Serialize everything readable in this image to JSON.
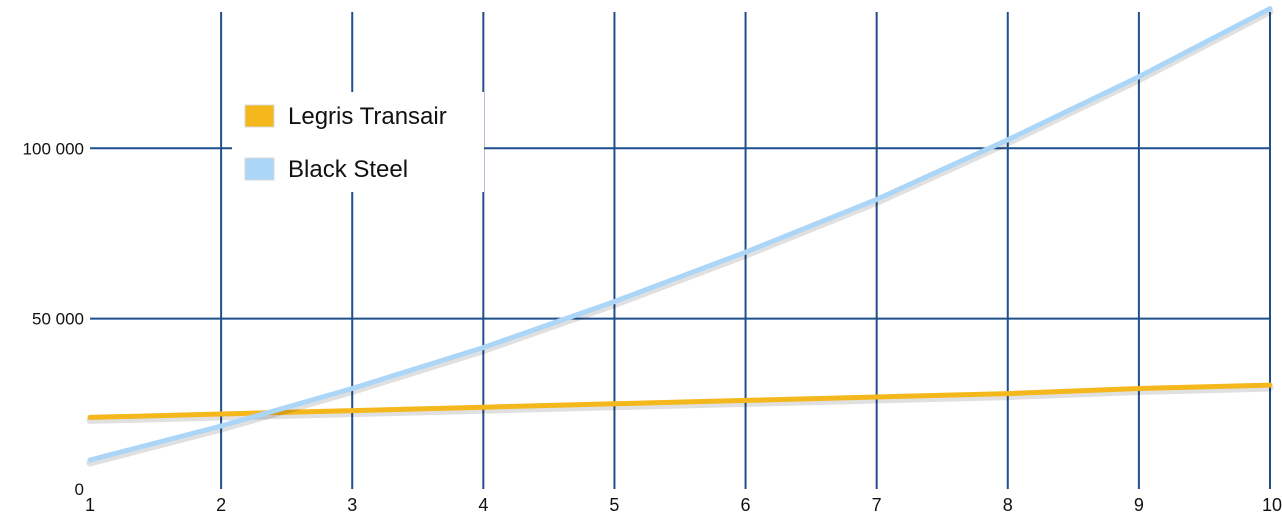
{
  "chart_data": {
    "type": "line",
    "title": "",
    "xlabel": "",
    "ylabel": "",
    "x": [
      1,
      2,
      3,
      4,
      5,
      6,
      7,
      8,
      9,
      10
    ],
    "xlim": [
      1,
      10
    ],
    "ylim": [
      0,
      140000
    ],
    "xticks": [
      "1",
      "2",
      "3",
      "4",
      "5",
      "6",
      "7",
      "8",
      "9",
      "10"
    ],
    "yticks": [
      {
        "value": 0,
        "label": "0"
      },
      {
        "value": 50000,
        "label": "50 000"
      },
      {
        "value": 100000,
        "label": "100 000"
      }
    ],
    "grid": true,
    "legend_position": "top-left",
    "series": [
      {
        "name": "Legris Transair",
        "color": "#f4b71c",
        "values": [
          21000,
          22000,
          23000,
          24000,
          25000,
          26000,
          27000,
          28000,
          29500,
          30500
        ]
      },
      {
        "name": "Black Steel",
        "color": "#acd6f7",
        "values": [
          8500,
          18500,
          29500,
          41500,
          55000,
          69500,
          85000,
          102500,
          121000,
          141000
        ]
      }
    ]
  },
  "colors": {
    "grid": "#1f4f8c",
    "background": "#ffffff"
  }
}
